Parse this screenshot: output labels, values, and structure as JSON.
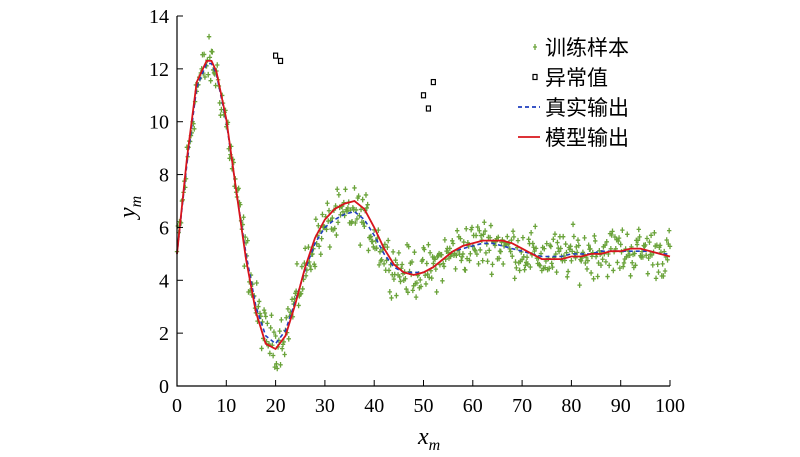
{
  "chart_data": {
    "type": "line",
    "xlabel": "x",
    "xlabel_sub": "m",
    "ylabel": "y",
    "ylabel_sub": "m",
    "xlim": [
      0,
      100
    ],
    "ylim": [
      0,
      14
    ],
    "xticks": [
      0,
      10,
      20,
      30,
      40,
      50,
      60,
      70,
      80,
      90,
      100
    ],
    "yticks": [
      0,
      2,
      4,
      6,
      8,
      10,
      12,
      14
    ],
    "grid": false,
    "legend_position": "top-right",
    "x": [
      0,
      2,
      4,
      6,
      7,
      8,
      10,
      12,
      14,
      16,
      18,
      20,
      22,
      24,
      26,
      28,
      30,
      32,
      34,
      36,
      38,
      40,
      42,
      44,
      46,
      48,
      50,
      52,
      54,
      56,
      58,
      60,
      62,
      64,
      66,
      68,
      70,
      72,
      74,
      76,
      78,
      80,
      82,
      84,
      86,
      88,
      90,
      92,
      94,
      96,
      98,
      100
    ],
    "series": [
      {
        "name": "训练样本",
        "kind": "scatter",
        "marker": "plus",
        "color": "#6aa33a",
        "noise_amplitude": 0.7,
        "points_per_x": 6
      },
      {
        "name": "异常值",
        "kind": "scatter",
        "marker": "square",
        "color": "#000000",
        "points": [
          [
            20,
            12.5
          ],
          [
            21,
            12.3
          ],
          [
            50,
            11.0
          ],
          [
            51,
            10.5
          ],
          [
            52,
            11.5
          ]
        ]
      },
      {
        "name": "真实输出",
        "kind": "line",
        "style": "dashed",
        "color": "#1f3fbf",
        "values": [
          5.0,
          8.4,
          11.3,
          12.2,
          12.2,
          11.8,
          10.0,
          7.4,
          5.0,
          3.0,
          1.9,
          1.6,
          2.1,
          3.2,
          4.4,
          5.4,
          6.0,
          6.3,
          6.5,
          6.6,
          6.3,
          5.7,
          5.0,
          4.5,
          4.3,
          4.3,
          4.3,
          4.5,
          4.8,
          5.1,
          5.2,
          5.3,
          5.4,
          5.4,
          5.3,
          5.2,
          5.1,
          5.0,
          4.9,
          4.9,
          4.9,
          5.0,
          5.0,
          5.0,
          5.1,
          5.1,
          5.1,
          5.1,
          5.1,
          5.1,
          5.0,
          5.0
        ]
      },
      {
        "name": "模型输出",
        "kind": "line",
        "style": "solid",
        "color": "#d8141c",
        "values": [
          5.0,
          8.6,
          11.5,
          12.3,
          12.3,
          11.9,
          10.1,
          7.4,
          4.8,
          2.8,
          1.6,
          1.4,
          1.9,
          3.1,
          4.5,
          5.6,
          6.3,
          6.7,
          6.9,
          7.0,
          6.7,
          6.0,
          5.2,
          4.6,
          4.3,
          4.2,
          4.3,
          4.5,
          4.8,
          5.1,
          5.3,
          5.4,
          5.5,
          5.5,
          5.5,
          5.4,
          5.2,
          5.0,
          4.8,
          4.8,
          4.8,
          4.9,
          4.9,
          5.0,
          5.0,
          5.1,
          5.1,
          5.2,
          5.2,
          5.1,
          5.0,
          4.9
        ]
      }
    ]
  }
}
